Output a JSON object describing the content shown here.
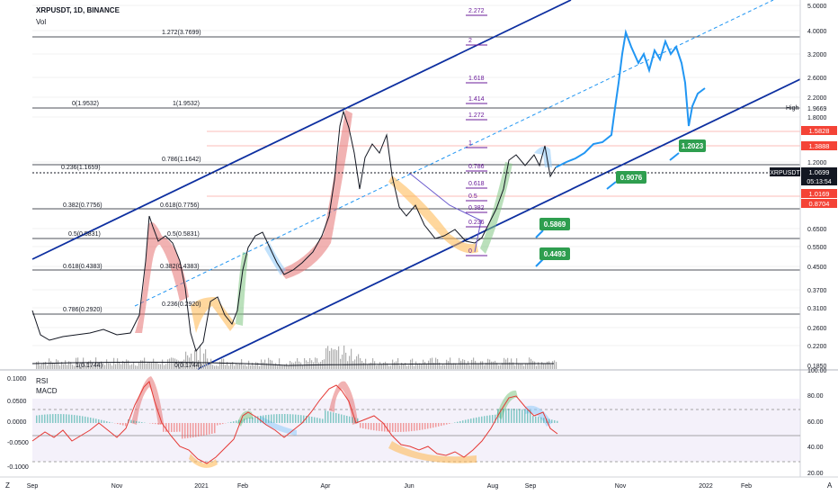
{
  "header": {
    "symbol_title": "XRPUSDT, 1D, BINANCE",
    "vol_label": "Vol"
  },
  "colors": {
    "price": "#2196f3",
    "channel": "#0d2fa0",
    "fib": "#6a1b9a",
    "grid": "#e6e6e6",
    "last_price": "#131722",
    "down_tag": "#f44336",
    "green_tag": "#2e9e4f"
  },
  "price_axis": {
    "ticks": [
      "5.0000",
      "4.0000",
      "3.2000",
      "2.6000",
      "2.2000",
      "1.9669",
      "1.8000",
      "1.5828",
      "1.3888",
      "1.2000",
      "1.0699",
      "1.0169",
      "0.8704",
      "0.6500",
      "0.5500",
      "0.4500",
      "0.3700",
      "0.3100",
      "0.2600",
      "0.2200",
      "0.1850"
    ],
    "last_label": "XRPUSDT",
    "last_value": "1.0699",
    "countdown": "05:13:54",
    "high_label": "High",
    "tag_1": "1.5828",
    "tag_2": "1.3888",
    "tag_3": "1.0169",
    "tag_4": "0.8704"
  },
  "time_axis": [
    "Sep",
    "Nov",
    "2021",
    "Feb",
    "Apr",
    "Jun",
    "Aug",
    "Sep",
    "Nov",
    "2022",
    "Feb"
  ],
  "fib_left": {
    "l1272": "1.272(3.7699)",
    "l0": "0(1.9532)",
    "l1": "1(1.9532)",
    "l786": "0.786(1.1642)",
    "l236": "0.236(1.1659)",
    "l382a": "0.382(0.7756)",
    "l618a": "0.618(0.7756)",
    "l5a": "0.5(0.5831)",
    "l5b": "0.5(0.5831)",
    "l618b": "0.618(0.4383)",
    "l382b": "0.382(0.4383)",
    "l786b": "0.786(0.2920)",
    "l236b": "0.236(0.2920)",
    "l1b": "1(0.1744)",
    "l0b": "0(0.1744)"
  },
  "fib_ext": [
    "2.272",
    "2",
    "1.618",
    "1.414",
    "1.272",
    "1",
    "0.786",
    "0.618",
    "0.5",
    "0.382",
    "0.236",
    "0"
  ],
  "callouts": [
    "1.2023",
    "0.9076",
    "0.5869",
    "0.4493"
  ],
  "indicator_panel": {
    "rsi_label": "RSI",
    "macd_label": "MACD",
    "left_ticks": [
      "0.1000",
      "0.0500",
      "0.0000",
      "-0.0500",
      "-0.1000"
    ],
    "right_ticks": [
      "100.00",
      "80.00",
      "60.00",
      "40.00",
      "20.00"
    ]
  },
  "corner": {
    "left": "Z",
    "right": "A"
  },
  "chart_data": {
    "type": "line",
    "scale": "log",
    "xlabel": "",
    "ylabel": "",
    "x": [
      "2020-09",
      "2020-11",
      "2021-01",
      "2021-02",
      "2021-04",
      "2021-06",
      "2021-08",
      "2021-09",
      "2021-11",
      "2022-01"
    ],
    "series": [
      {
        "name": "XRPUSDT",
        "values": [
          0.24,
          0.25,
          0.22,
          0.48,
          1.8,
          0.62,
          0.55,
          1.07,
          3.9,
          2.3
        ]
      }
    ],
    "ylim": [
      0.16,
      5.0
    ]
  }
}
